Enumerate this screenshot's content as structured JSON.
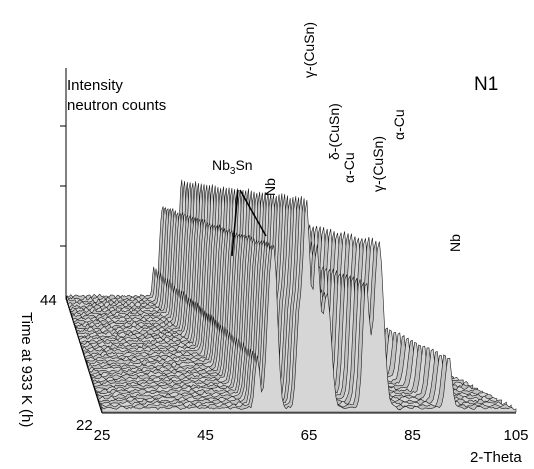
{
  "panel_label": "N1",
  "chart_data": {
    "type": "area",
    "style": "3d-waterfall",
    "zlabel_line1": "Intensity",
    "zlabel_line2": "neutron counts",
    "xlabel": "2-Theta",
    "ylabel": "Time at 933 K (h)",
    "x_ticks": [
      "25",
      "45",
      "65",
      "85",
      "105"
    ],
    "xlim": [
      25,
      105
    ],
    "y_ticks": [
      "22",
      "44"
    ],
    "ylim": [
      22,
      44
    ],
    "peak_labels": [
      {
        "text": "Nb3Sn",
        "base": "Nb",
        "sub": "3",
        "rest": "Sn",
        "x": 55
      },
      {
        "text": "Nb",
        "x": 61
      },
      {
        "text": "γ-(CuSn)",
        "x": 67
      },
      {
        "text": "δ-(CuSn)",
        "x": 70
      },
      {
        "text": "α-Cu",
        "x": 73
      },
      {
        "text": "γ-(CuSn)",
        "x": 79
      },
      {
        "text": "α-Cu",
        "x": 83
      },
      {
        "text": "Nb",
        "x": 93
      }
    ],
    "peaks": [
      {
        "x": 55.0,
        "height": 0.25,
        "width": 0.45
      },
      {
        "x": 57.5,
        "height": 0.55,
        "width": 0.7
      },
      {
        "x": 58.5,
        "height": 0.5,
        "width": 0.6
      },
      {
        "x": 63.0,
        "height": 0.35,
        "width": 0.5
      },
      {
        "x": 64.5,
        "height": 1.0,
        "width": 0.7
      },
      {
        "x": 66.5,
        "height": 0.75,
        "width": 0.6
      },
      {
        "x": 68.5,
        "height": 0.55,
        "width": 0.8
      },
      {
        "x": 76.0,
        "height": 0.6,
        "width": 0.6
      },
      {
        "x": 78.5,
        "height": 0.8,
        "width": 0.9
      },
      {
        "x": 92.0,
        "height": 0.25,
        "width": 0.6
      }
    ]
  }
}
